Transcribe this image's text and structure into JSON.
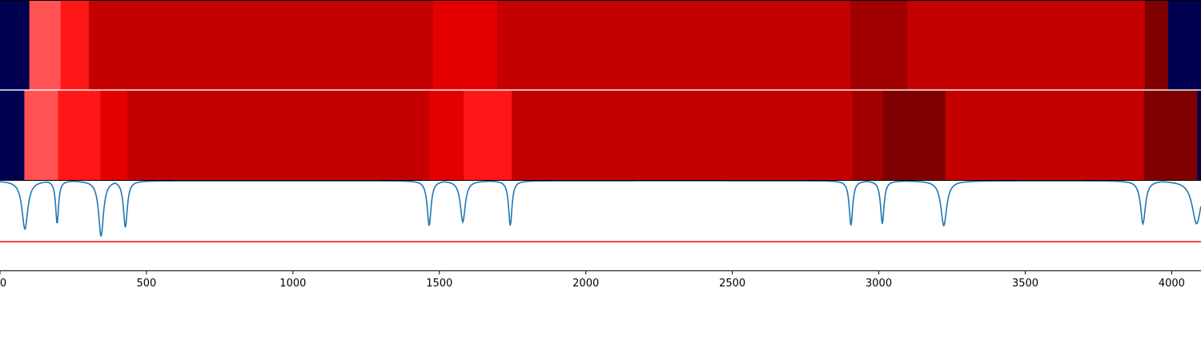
{
  "chart_data": {
    "type": "heatmap",
    "xlim": [
      0,
      4100
    ],
    "x_ticks": [
      0,
      500,
      1000,
      1500,
      2000,
      2500,
      3000,
      3500,
      4000
    ],
    "x_tick_labels": [
      "0",
      "500",
      "1000",
      "1500",
      "2000",
      "2500",
      "3000",
      "3500",
      "4000"
    ],
    "grid": false,
    "legend": "none",
    "colors": {
      "navy": "#000050",
      "light_red": "#ff5252",
      "bright_red": "#ff1717",
      "red": "#e40000",
      "mid_red": "#c40000",
      "dark_red": "#a10000",
      "darker_red": "#7e0000",
      "line": "#1f77b4",
      "threshold": "#ff0000"
    },
    "heat_rows": [
      {
        "segments": [
          {
            "start": 0,
            "end": 100,
            "color": "navy"
          },
          {
            "start": 100,
            "end": 207,
            "color": "light_red"
          },
          {
            "start": 207,
            "end": 303,
            "color": "bright_red"
          },
          {
            "start": 303,
            "end": 1478,
            "color": "mid_red"
          },
          {
            "start": 1478,
            "end": 1697,
            "color": "red"
          },
          {
            "start": 1697,
            "end": 2903,
            "color": "mid_red"
          },
          {
            "start": 2903,
            "end": 3098,
            "color": "dark_red"
          },
          {
            "start": 3098,
            "end": 3908,
            "color": "mid_red"
          },
          {
            "start": 3908,
            "end": 3988,
            "color": "darker_red"
          },
          {
            "start": 3988,
            "end": 4100,
            "color": "navy"
          }
        ]
      },
      {
        "segments": [
          {
            "start": 0,
            "end": 83,
            "color": "navy"
          },
          {
            "start": 83,
            "end": 198,
            "color": "light_red"
          },
          {
            "start": 198,
            "end": 343,
            "color": "bright_red"
          },
          {
            "start": 343,
            "end": 434,
            "color": "red"
          },
          {
            "start": 434,
            "end": 1465,
            "color": "mid_red"
          },
          {
            "start": 1465,
            "end": 1583,
            "color": "red"
          },
          {
            "start": 1583,
            "end": 1747,
            "color": "bright_red"
          },
          {
            "start": 1747,
            "end": 2910,
            "color": "mid_red"
          },
          {
            "start": 2910,
            "end": 3015,
            "color": "dark_red"
          },
          {
            "start": 3015,
            "end": 3227,
            "color": "darker_red"
          },
          {
            "start": 3227,
            "end": 3905,
            "color": "mid_red"
          },
          {
            "start": 3905,
            "end": 4088,
            "color": "darker_red"
          },
          {
            "start": 4088,
            "end": 4100,
            "color": "navy"
          }
        ]
      }
    ],
    "signal": {
      "baseline": 0.0,
      "ylim": [
        -1.0,
        0.0
      ],
      "threshold": -0.68,
      "dips": [
        {
          "x": 85,
          "depth": -0.54,
          "width": 12
        },
        {
          "x": 195,
          "depth": -0.48,
          "width": 6
        },
        {
          "x": 345,
          "depth": -0.62,
          "width": 10
        },
        {
          "x": 428,
          "depth": -0.52,
          "width": 8
        },
        {
          "x": 1465,
          "depth": -0.5,
          "width": 8
        },
        {
          "x": 1580,
          "depth": -0.46,
          "width": 10
        },
        {
          "x": 1742,
          "depth": -0.5,
          "width": 7
        },
        {
          "x": 2905,
          "depth": -0.5,
          "width": 7
        },
        {
          "x": 3012,
          "depth": -0.48,
          "width": 7
        },
        {
          "x": 3222,
          "depth": -0.5,
          "width": 12
        },
        {
          "x": 3902,
          "depth": -0.48,
          "width": 10
        },
        {
          "x": 4085,
          "depth": -0.48,
          "width": 18
        }
      ]
    }
  }
}
